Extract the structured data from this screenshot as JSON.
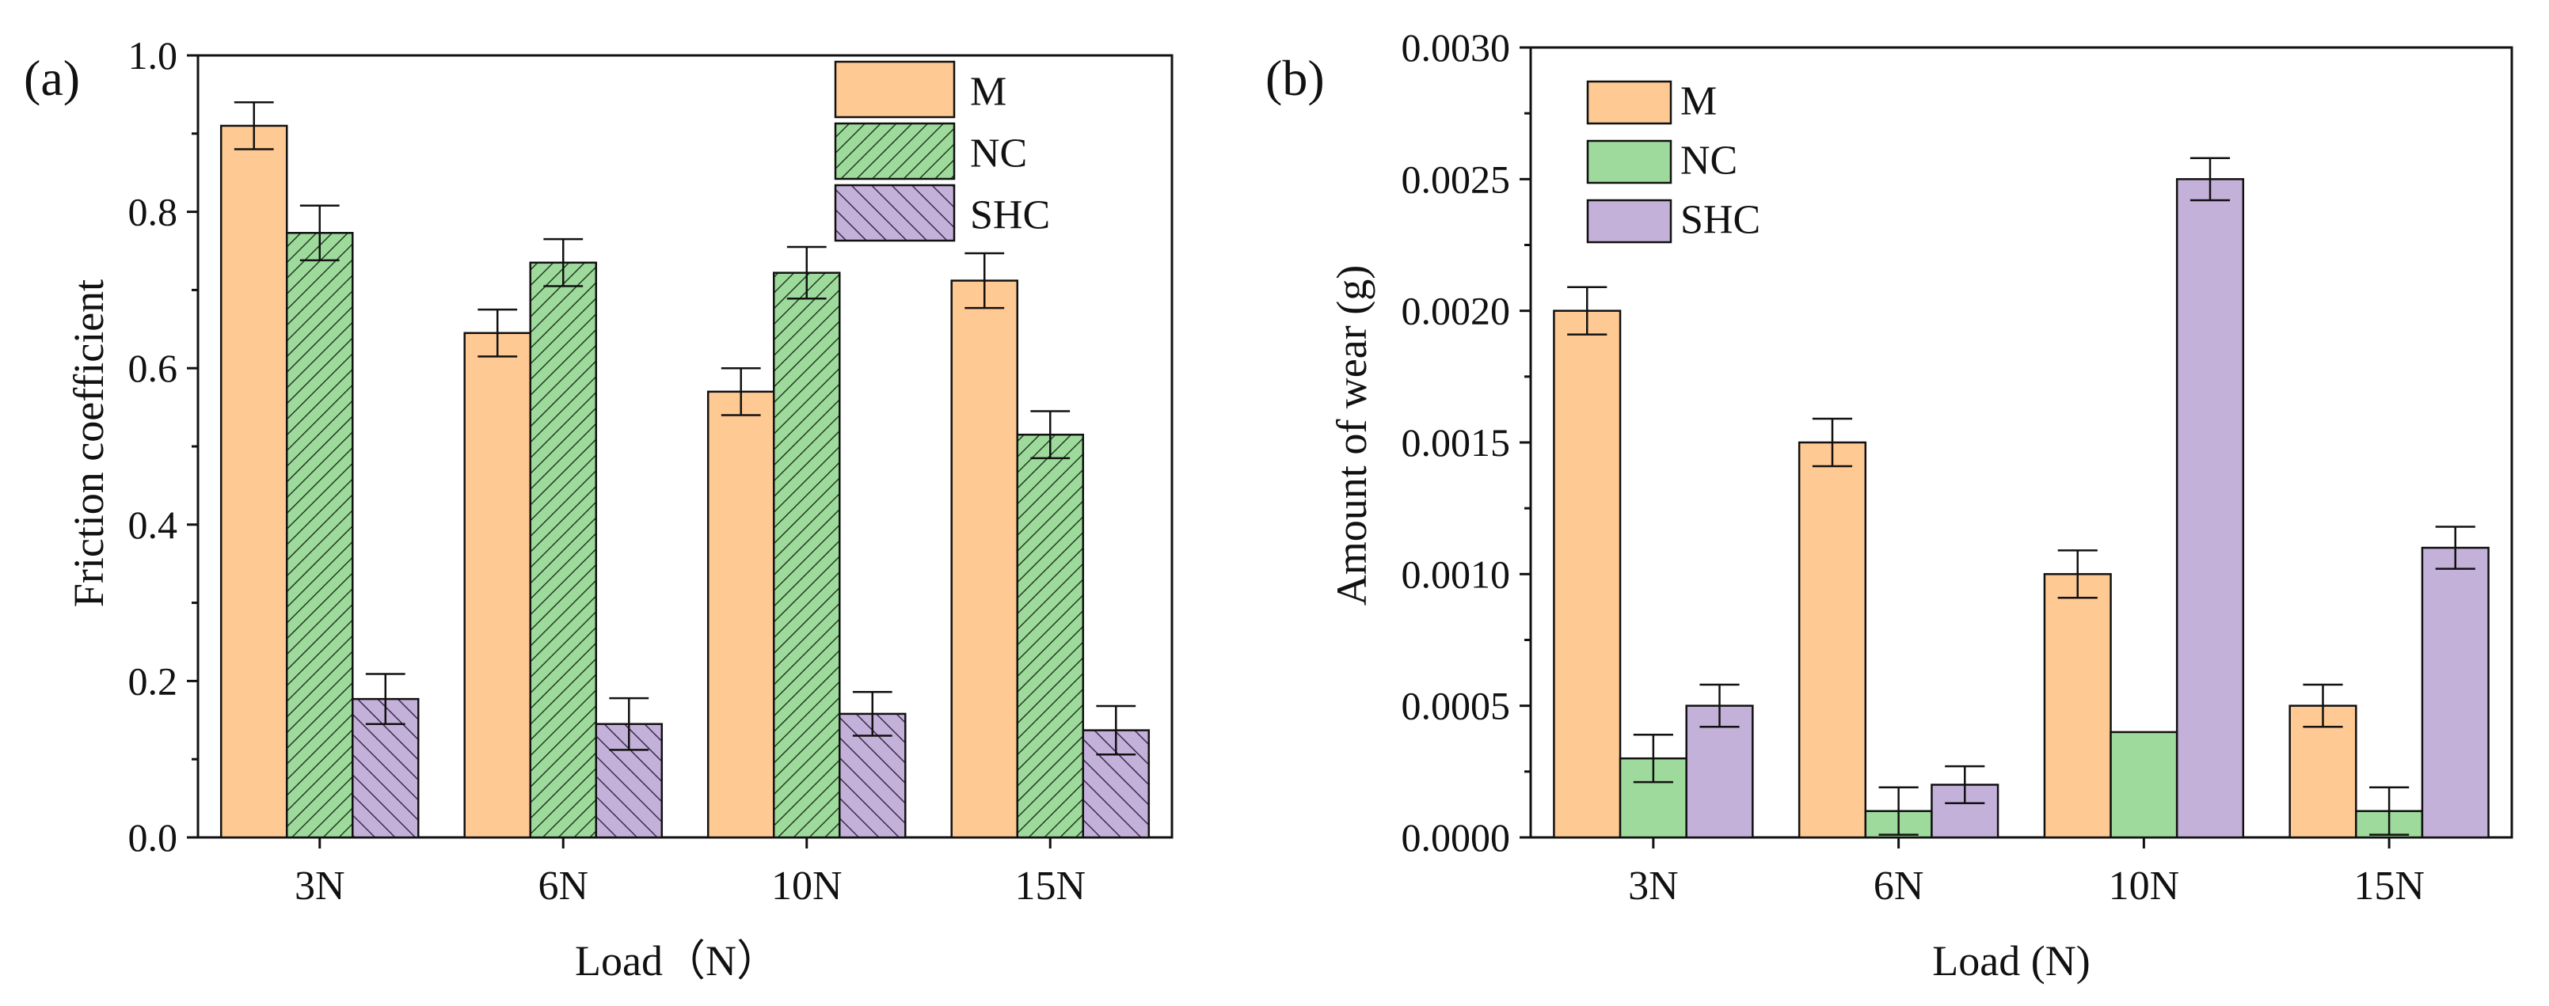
{
  "colors": {
    "M": "#FFC993",
    "NC": "#9FDA9D",
    "SHC": "#C4B1D9",
    "axis": "#111111"
  },
  "chart_data": [
    {
      "type": "bar",
      "panel_label": "(a)",
      "xlabel": "Load（N）",
      "ylabel": "Friction coefficient",
      "categories": [
        "3N",
        "6N",
        "10N",
        "15N"
      ],
      "ylim": [
        0,
        1.0
      ],
      "yticks": [
        0.0,
        0.2,
        0.4,
        0.6,
        0.8,
        1.0
      ],
      "ytick_labels": [
        "0.0",
        "0.2",
        "0.4",
        "0.6",
        "0.8",
        "1.0"
      ],
      "legend_position": "top-right",
      "hatched": true,
      "series": [
        {
          "name": "M",
          "values": [
            0.91,
            0.645,
            0.57,
            0.712
          ],
          "errors": [
            0.03,
            0.03,
            0.03,
            0.035
          ]
        },
        {
          "name": "NC",
          "values": [
            0.773,
            0.735,
            0.722,
            0.515
          ],
          "errors": [
            0.035,
            0.03,
            0.033,
            0.03
          ]
        },
        {
          "name": "SHC",
          "values": [
            0.177,
            0.145,
            0.158,
            0.137
          ],
          "errors": [
            0.032,
            0.033,
            0.028,
            0.031
          ]
        }
      ]
    },
    {
      "type": "bar",
      "panel_label": "(b)",
      "xlabel": "Load (N)",
      "ylabel": "Amount of wear (g)",
      "categories": [
        "3N",
        "6N",
        "10N",
        "15N"
      ],
      "ylim": [
        0,
        0.003
      ],
      "yticks": [
        0.0,
        0.0005,
        0.001,
        0.0015,
        0.002,
        0.0025,
        0.003
      ],
      "ytick_labels": [
        "0.0000",
        "0.0005",
        "0.0010",
        "0.0015",
        "0.0020",
        "0.0025",
        "0.0030"
      ],
      "legend_position": "top-left",
      "hatched": false,
      "series": [
        {
          "name": "M",
          "values": [
            0.002,
            0.0015,
            0.001,
            0.0005
          ],
          "errors": [
            9e-05,
            9e-05,
            9e-05,
            8e-05
          ]
        },
        {
          "name": "NC",
          "values": [
            0.0003,
            0.0001,
            0.0004,
            0.0001
          ],
          "errors": [
            9e-05,
            9e-05,
            0,
            9e-05
          ]
        },
        {
          "name": "SHC",
          "values": [
            0.0005,
            0.0002,
            0.0025,
            0.0011
          ],
          "errors": [
            8e-05,
            7e-05,
            8e-05,
            8e-05
          ]
        }
      ]
    }
  ]
}
